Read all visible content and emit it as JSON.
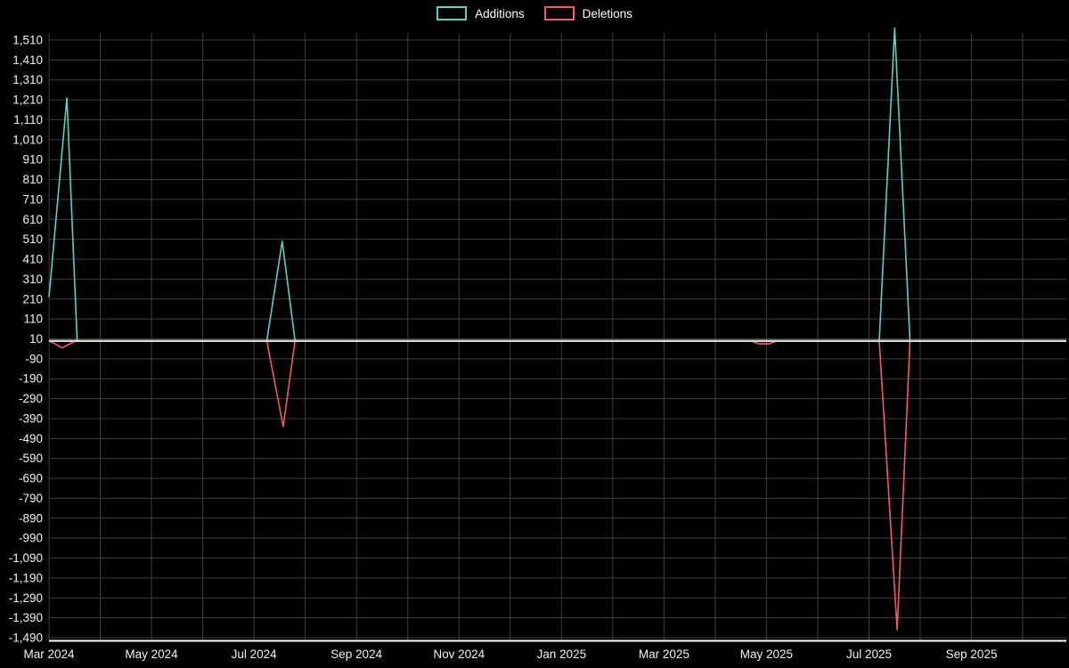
{
  "chart_data": {
    "type": "line",
    "title": "",
    "series": [
      {
        "name": "Additions",
        "color": "#5bd1c5",
        "points": [
          [
            0,
            220
          ],
          [
            0.35,
            1220
          ],
          [
            0.55,
            0
          ],
          [
            4.25,
            0
          ],
          [
            4.55,
            500
          ],
          [
            4.8,
            0
          ],
          [
            13.7,
            0
          ],
          [
            14.2,
            0
          ],
          [
            16.2,
            0
          ],
          [
            16.5,
            1570
          ],
          [
            16.8,
            0
          ],
          [
            19.85,
            0
          ]
        ]
      },
      {
        "name": "Deletions",
        "color": "#f2596e",
        "points": [
          [
            0,
            0
          ],
          [
            0.26,
            -35
          ],
          [
            0.52,
            0
          ],
          [
            4.25,
            0
          ],
          [
            4.57,
            -430
          ],
          [
            4.8,
            0
          ],
          [
            13.7,
            0
          ],
          [
            13.85,
            -15
          ],
          [
            14.05,
            -15
          ],
          [
            14.2,
            0
          ],
          [
            16.2,
            0
          ],
          [
            16.55,
            -1450
          ],
          [
            16.8,
            0
          ],
          [
            19.85,
            0
          ]
        ]
      }
    ],
    "x_axis": {
      "tick_labels": [
        "Mar 2024",
        "May 2024",
        "Jul 2024",
        "Sep 2024",
        "Nov 2024",
        "Jan 2025",
        "Mar 2025",
        "May 2025",
        "Jul 2025",
        "Sep 2025"
      ],
      "tick_positions": [
        0,
        2,
        4,
        6,
        8,
        10,
        12,
        14,
        16,
        18
      ],
      "unit": "months since Mar 2024",
      "grid_interval": 1
    },
    "y_axis": {
      "ticks": [
        1510,
        1410,
        1310,
        1210,
        1110,
        1010,
        910,
        810,
        710,
        610,
        510,
        410,
        310,
        210,
        110,
        10,
        -90,
        -190,
        -290,
        -390,
        -490,
        -590,
        -690,
        -790,
        -890,
        -990,
        -1090,
        -1190,
        -1290,
        -1390,
        -1490
      ]
    },
    "xlim": [
      0,
      19.85
    ],
    "ylim": [
      -1490,
      1510
    ],
    "zero_line": 0,
    "grid": true,
    "legend_position": "top-center",
    "background": "#000000",
    "gridline_color": "#404040",
    "axis_text_color": "#f2f2f2",
    "zero_line_color": "#d4d4d4",
    "axis_line_color": "#ffffff"
  }
}
